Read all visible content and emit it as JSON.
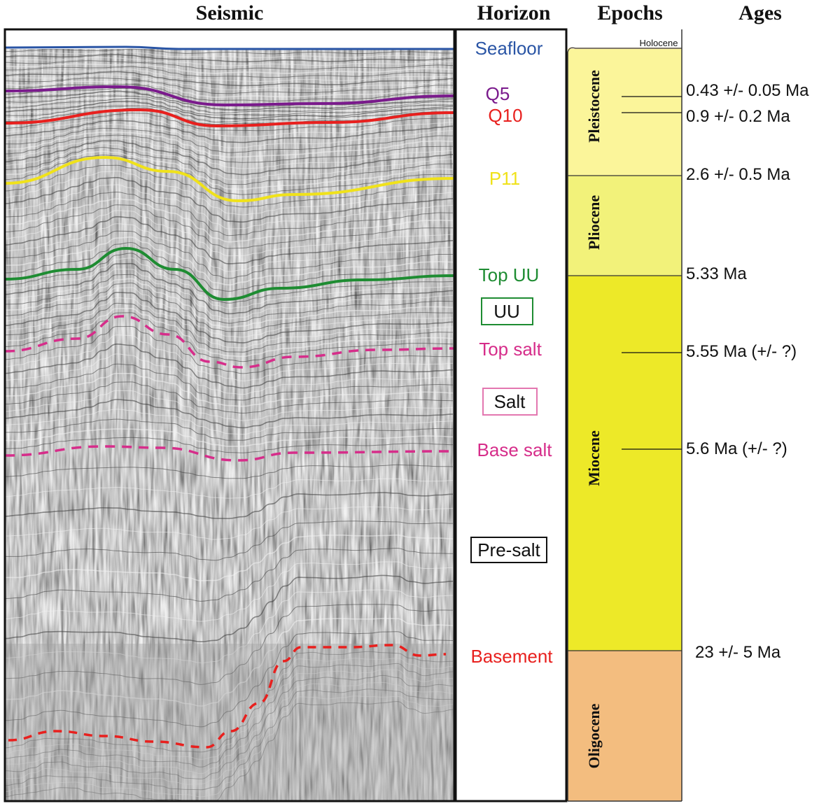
{
  "headers": {
    "seismic": "Seismic",
    "horizon": "Horizon",
    "epochs": "Epochs",
    "ages": "Ages"
  },
  "horizons": [
    {
      "key": "seafloor",
      "label": "Seafloor",
      "color": "#2a55a5"
    },
    {
      "key": "q5",
      "label": "Q5",
      "color": "#7a1a8c"
    },
    {
      "key": "q10",
      "label": "Q10",
      "color": "#e8201e"
    },
    {
      "key": "p11",
      "label": "P11",
      "color": "#f0e21a"
    },
    {
      "key": "top-uu",
      "label": "Top UU",
      "color": "#1e8c32"
    },
    {
      "key": "top-salt",
      "label": "Top salt",
      "color": "#d62d8a"
    },
    {
      "key": "base-salt",
      "label": "Base salt",
      "color": "#d62d8a"
    },
    {
      "key": "basement",
      "label": "Basement",
      "color": "#e8201e"
    }
  ],
  "units": [
    {
      "key": "uu",
      "label": "UU",
      "border": "#1e8c32"
    },
    {
      "key": "salt",
      "label": "Salt",
      "border": "#e377b0"
    },
    {
      "key": "pre-salt",
      "label": "Pre-salt",
      "border": "#111111"
    }
  ],
  "epochs": [
    {
      "key": "holocene",
      "label": "Holocene",
      "color": "#fbe9c7"
    },
    {
      "key": "pleistocene",
      "label": "Pleistocene",
      "color": "#fbf59a"
    },
    {
      "key": "pliocene",
      "label": "Pliocene",
      "color": "#f2f27a"
    },
    {
      "key": "miocene",
      "label": "Miocene",
      "color": "#ede928"
    },
    {
      "key": "oligocene",
      "label": "Oligocene",
      "color": "#f3bd7f"
    }
  ],
  "ages": [
    {
      "key": "age-q5",
      "label": "0.43 +/- 0.05 Ma"
    },
    {
      "key": "age-q10",
      "label": "0.9 +/- 0.2 Ma"
    },
    {
      "key": "age-p11",
      "label": "2.6 +/- 0.5 Ma"
    },
    {
      "key": "age-top-uu",
      "label": "5.33 Ma"
    },
    {
      "key": "age-top-salt",
      "label": "5.55 Ma (+/- ?)"
    },
    {
      "key": "age-base-salt",
      "label": "5.6 Ma (+/- ?)"
    },
    {
      "key": "age-basement",
      "label": "23 +/- 5 Ma"
    }
  ]
}
